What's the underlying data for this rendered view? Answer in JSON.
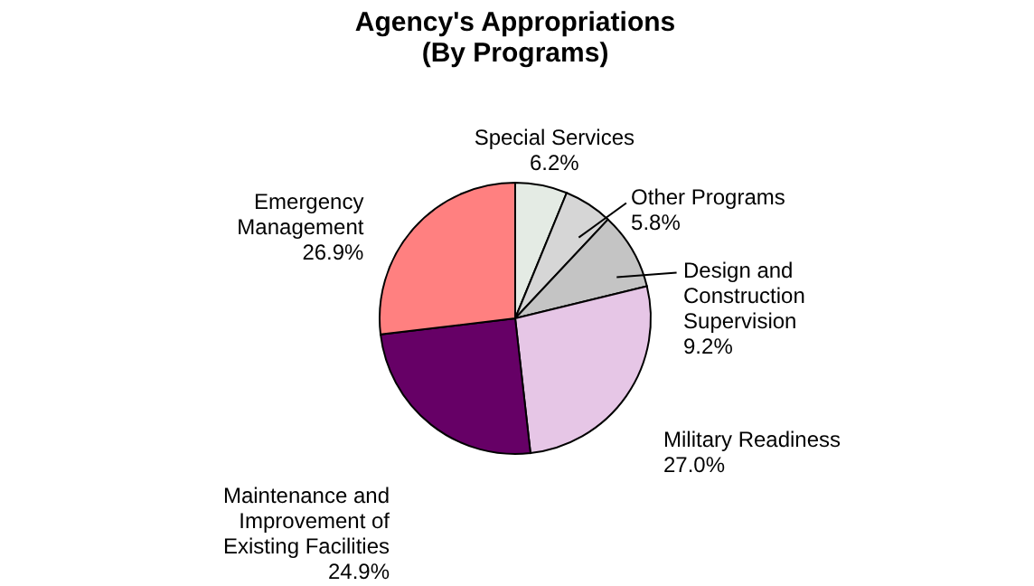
{
  "chart_data": {
    "type": "pie",
    "title": [
      "Agency's Appropriations",
      "(By Programs)"
    ],
    "categories": [
      "Special Services",
      "Other Programs",
      "Design and Construction Supervision",
      "Military Readiness",
      "Maintenance and Improvement of Existing Facilities",
      "Emergency Management"
    ],
    "values": [
      6.2,
      5.8,
      9.2,
      27.0,
      24.9,
      26.9
    ],
    "value_labels": [
      "6.2%",
      "5.8%",
      "9.2%",
      "27.0%",
      "24.9%",
      "26.9%"
    ],
    "colors": [
      "#e4ebe4",
      "#d6d6d6",
      "#c4c4c4",
      "#e6c6e6",
      "#660066",
      "#ff8080"
    ],
    "legend": false
  }
}
